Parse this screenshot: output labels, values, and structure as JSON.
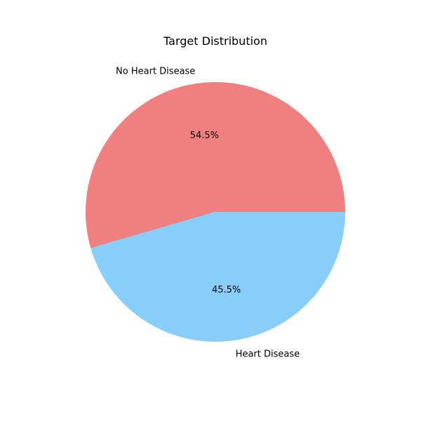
{
  "chart_data": {
    "type": "pie",
    "title": "Target Distribution",
    "slices": [
      {
        "label": "No Heart Disease",
        "value": 54.5,
        "pct_label": "54.5%",
        "color": "#F08080"
      },
      {
        "label": "Heart Disease",
        "value": 45.5,
        "pct_label": "45.5%",
        "color": "#87CEFA"
      }
    ],
    "start_angle_deg": 0,
    "direction": "counterclockwise"
  }
}
